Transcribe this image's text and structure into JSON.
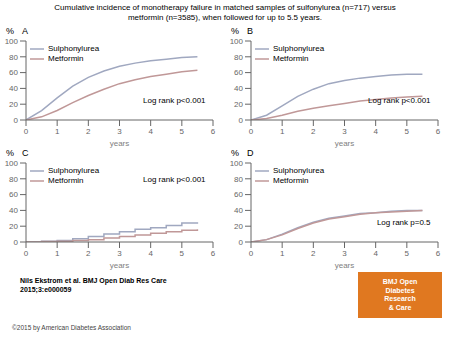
{
  "title": "Cumulative incidence of monotherapy failure in matched samples of sulfonylurea (n=717) versus\nmetformin (n=3585), when followed for up to 5.5 years.",
  "chart_data": [
    {
      "type": "line",
      "title": "A",
      "xlabel": "years",
      "ylabel": "%",
      "x": [
        0,
        0.5,
        1,
        1.5,
        2,
        2.5,
        3,
        3.5,
        4,
        4.5,
        5,
        5.5
      ],
      "series": [
        {
          "name": "Sulphonylurea",
          "color": "#a0a8c0",
          "values": [
            0,
            12,
            28,
            43,
            54,
            62,
            68,
            72,
            75,
            77,
            79,
            80
          ]
        },
        {
          "name": "Metformin",
          "color": "#c09898",
          "values": [
            0,
            4,
            12,
            22,
            31,
            39,
            46,
            51,
            55,
            58,
            61,
            63
          ]
        }
      ],
      "xlim": [
        0,
        6
      ],
      "ylim": [
        0,
        100
      ],
      "xticks": [
        0,
        1,
        2,
        3,
        4,
        5,
        6
      ],
      "yticks": [
        0,
        20,
        40,
        60,
        80,
        100
      ],
      "grid": false,
      "legend": "upper left",
      "annotations": [
        "Log rank p<0.001"
      ]
    },
    {
      "type": "line",
      "title": "B",
      "xlabel": "years",
      "ylabel": "%",
      "x": [
        0,
        0.5,
        1,
        1.5,
        2,
        2.5,
        3,
        3.5,
        4,
        4.5,
        5,
        5.5
      ],
      "series": [
        {
          "name": "Sulphonylurea",
          "color": "#a0a8c0",
          "values": [
            0,
            6,
            18,
            30,
            39,
            46,
            50,
            53,
            55,
            57,
            58,
            58
          ]
        },
        {
          "name": "Metformin",
          "color": "#c09898",
          "values": [
            0,
            2,
            6,
            11,
            15,
            18,
            21,
            24,
            26,
            28,
            29,
            30
          ]
        }
      ],
      "xlim": [
        0,
        6
      ],
      "ylim": [
        0,
        100
      ],
      "xticks": [
        0,
        1,
        2,
        3,
        4,
        5,
        6
      ],
      "yticks": [
        0,
        20,
        40,
        60,
        80,
        100
      ],
      "grid": false,
      "legend": "upper left",
      "annotations": [
        "Log rank p<0.001"
      ]
    },
    {
      "type": "step",
      "title": "C",
      "xlabel": "years",
      "ylabel": "%",
      "x": [
        0,
        0.5,
        1,
        1.5,
        2,
        2.5,
        3,
        3.5,
        4,
        4.5,
        5,
        5.5
      ],
      "series": [
        {
          "name": "Sulphonylurea",
          "color": "#a0a8c0",
          "values": [
            0,
            1,
            2,
            4,
            7,
            10,
            13,
            16,
            18,
            21,
            24,
            25
          ]
        },
        {
          "name": "Metformin",
          "color": "#c09898",
          "values": [
            0,
            0.5,
            1,
            2,
            3,
            5,
            7,
            9,
            11,
            13,
            15,
            16
          ]
        }
      ],
      "xlim": [
        0,
        6
      ],
      "ylim": [
        0,
        100
      ],
      "xticks": [
        0,
        1,
        2,
        3,
        4,
        5,
        6
      ],
      "yticks": [
        0,
        20,
        40,
        60,
        80,
        100
      ],
      "grid": false,
      "legend": "upper left",
      "annotations": [
        "Log rank p<0.001"
      ]
    },
    {
      "type": "line",
      "title": "D",
      "xlabel": "years",
      "ylabel": "%",
      "x": [
        0,
        0.5,
        1,
        1.5,
        2,
        2.5,
        3,
        3.5,
        4,
        4.5,
        5,
        5.5
      ],
      "series": [
        {
          "name": "Sulphonylurea",
          "color": "#a0a8c0",
          "values": [
            0,
            3,
            10,
            18,
            25,
            30,
            33,
            36,
            37,
            39,
            40,
            40
          ]
        },
        {
          "name": "Metformin",
          "color": "#c09898",
          "values": [
            0,
            3,
            9,
            17,
            24,
            29,
            32,
            35,
            37,
            38,
            39,
            40
          ]
        }
      ],
      "xlim": [
        0,
        6
      ],
      "ylim": [
        0,
        100
      ],
      "xticks": [
        0,
        1,
        2,
        3,
        4,
        5,
        6
      ],
      "yticks": [
        0,
        20,
        40,
        60,
        80,
        100
      ],
      "grid": false,
      "legend": "upper left",
      "annotations": [
        "Log rank p=0.5"
      ]
    }
  ],
  "annotations": [
    {
      "text": "Nils Ekstrom et al. BMJ Open Diab Res Care\n2015;3:e000059"
    },
    {
      "text": "BMJ Open\nDiabetes\nResearch\n& Care",
      "color": "#e07820"
    },
    {
      "text": "©2015 by American Diabetes Association"
    }
  ]
}
